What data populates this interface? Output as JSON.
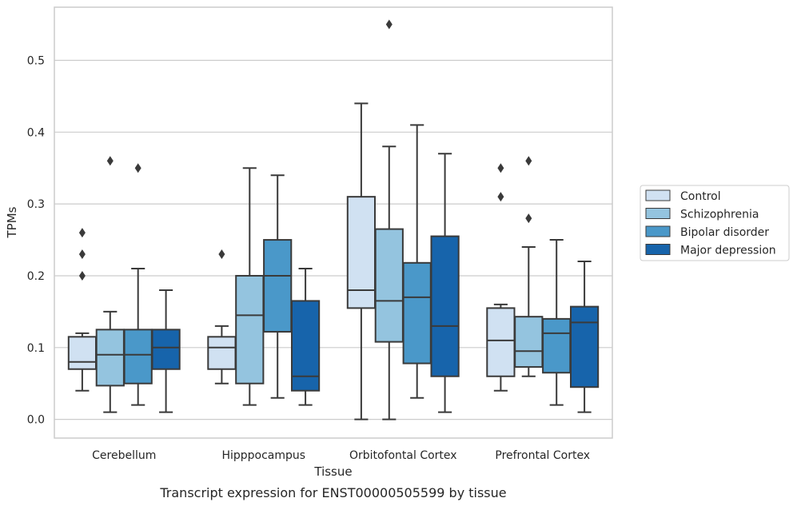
{
  "chart_data": {
    "type": "box",
    "title": "",
    "caption": "Transcript expression for ENST00000505599 by tissue",
    "xlabel": "Tissue",
    "ylabel": "TPMs",
    "ylim": [
      -0.026,
      0.574
    ],
    "yticks": [
      0.0,
      0.1,
      0.2,
      0.3,
      0.4,
      0.5
    ],
    "ytick_labels": [
      "0.0",
      "0.1",
      "0.2",
      "0.3",
      "0.4",
      "0.5"
    ],
    "grid": "horizontal",
    "legend_position": "right",
    "categories": [
      "Cerebellum",
      "Hipppocampus",
      "Orbitofontal Cortex",
      "Prefrontal Cortex"
    ],
    "series": [
      {
        "name": "Control",
        "color": "#d0e1f2",
        "boxes": [
          {
            "whisker_low": 0.04,
            "q1": 0.07,
            "median": 0.08,
            "q3": 0.115,
            "whisker_high": 0.12,
            "outliers": [
              0.2,
              0.23,
              0.26
            ]
          },
          {
            "whisker_low": 0.05,
            "q1": 0.07,
            "median": 0.1,
            "q3": 0.115,
            "whisker_high": 0.13,
            "outliers": [
              0.23
            ]
          },
          {
            "whisker_low": 0.0,
            "q1": 0.155,
            "median": 0.18,
            "q3": 0.31,
            "whisker_high": 0.44,
            "outliers": []
          },
          {
            "whisker_low": 0.04,
            "q1": 0.06,
            "median": 0.11,
            "q3": 0.155,
            "whisker_high": 0.16,
            "outliers": [
              0.31,
              0.35
            ]
          }
        ]
      },
      {
        "name": "Schizophrenia",
        "color": "#94c4df",
        "boxes": [
          {
            "whisker_low": 0.01,
            "q1": 0.047,
            "median": 0.09,
            "q3": 0.125,
            "whisker_high": 0.15,
            "outliers": [
              0.36
            ]
          },
          {
            "whisker_low": 0.02,
            "q1": 0.05,
            "median": 0.145,
            "q3": 0.2,
            "whisker_high": 0.35,
            "outliers": []
          },
          {
            "whisker_low": 0.0,
            "q1": 0.108,
            "median": 0.165,
            "q3": 0.265,
            "whisker_high": 0.38,
            "outliers": [
              0.55
            ]
          },
          {
            "whisker_low": 0.06,
            "q1": 0.073,
            "median": 0.095,
            "q3": 0.143,
            "whisker_high": 0.24,
            "outliers": [
              0.28,
              0.36
            ]
          }
        ]
      },
      {
        "name": "Bipolar disorder",
        "color": "#4a98c9",
        "boxes": [
          {
            "whisker_low": 0.02,
            "q1": 0.05,
            "median": 0.09,
            "q3": 0.125,
            "whisker_high": 0.21,
            "outliers": [
              0.35
            ]
          },
          {
            "whisker_low": 0.03,
            "q1": 0.122,
            "median": 0.2,
            "q3": 0.25,
            "whisker_high": 0.34,
            "outliers": []
          },
          {
            "whisker_low": 0.03,
            "q1": 0.078,
            "median": 0.17,
            "q3": 0.218,
            "whisker_high": 0.41,
            "outliers": []
          },
          {
            "whisker_low": 0.02,
            "q1": 0.065,
            "median": 0.12,
            "q3": 0.14,
            "whisker_high": 0.25,
            "outliers": []
          }
        ]
      },
      {
        "name": "Major depression",
        "color": "#1764ab",
        "boxes": [
          {
            "whisker_low": 0.01,
            "q1": 0.07,
            "median": 0.1,
            "q3": 0.125,
            "whisker_high": 0.18,
            "outliers": []
          },
          {
            "whisker_low": 0.02,
            "q1": 0.04,
            "median": 0.06,
            "q3": 0.165,
            "whisker_high": 0.21,
            "outliers": []
          },
          {
            "whisker_low": 0.01,
            "q1": 0.06,
            "median": 0.13,
            "q3": 0.255,
            "whisker_high": 0.37,
            "outliers": []
          },
          {
            "whisker_low": 0.01,
            "q1": 0.045,
            "median": 0.135,
            "q3": 0.157,
            "whisker_high": 0.22,
            "outliers": []
          }
        ]
      }
    ]
  }
}
